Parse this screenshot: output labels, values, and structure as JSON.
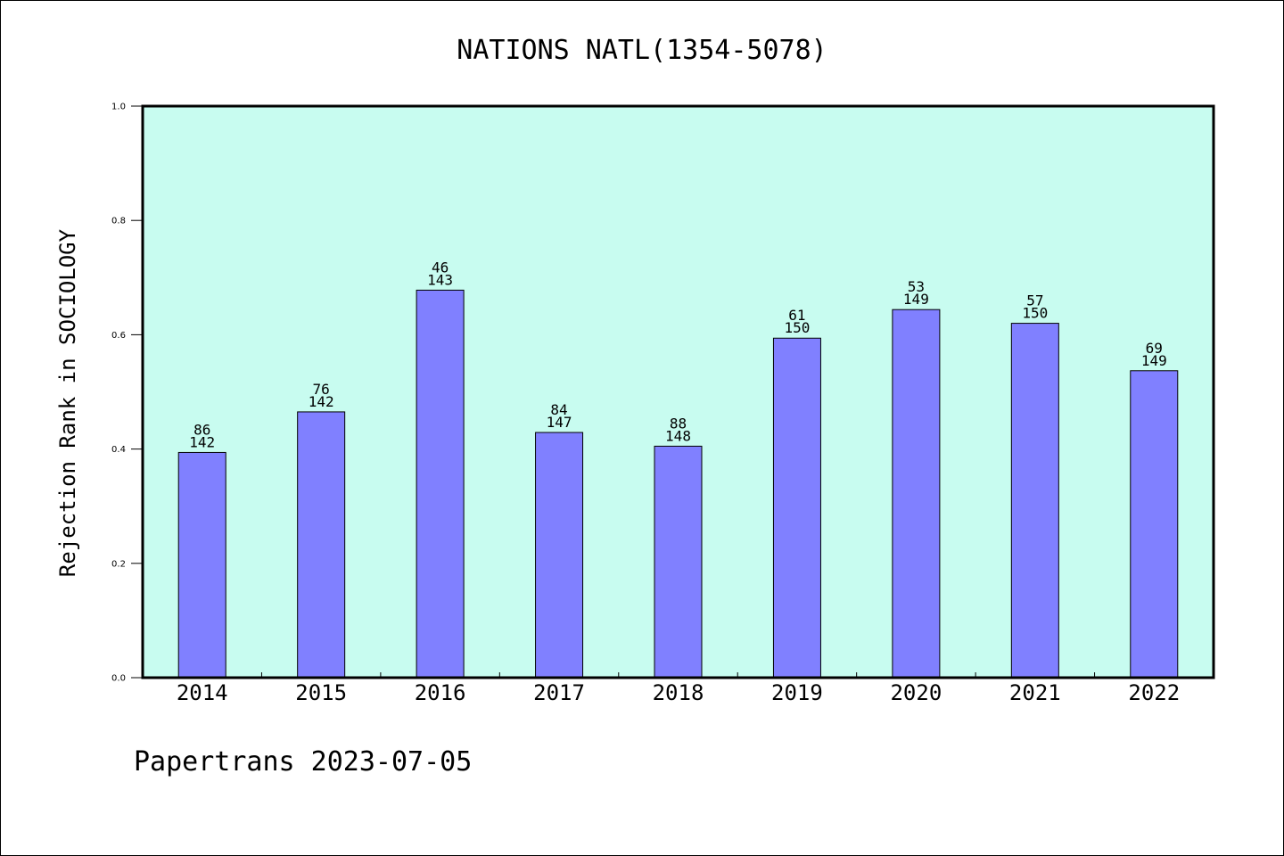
{
  "chart_data": {
    "type": "bar",
    "title": "NATIONS NATL(1354-5078)",
    "xlabel": "",
    "ylabel": "Rejection Rank in SOCIOLOGY",
    "ylim": [
      0.0,
      1.0
    ],
    "yticks": [
      "0.0",
      "0.2",
      "0.4",
      "0.6",
      "0.8",
      "1.0"
    ],
    "categories": [
      "2014",
      "2015",
      "2016",
      "2017",
      "2018",
      "2019",
      "2020",
      "2021",
      "2022"
    ],
    "values": [
      0.394,
      0.465,
      0.678,
      0.429,
      0.405,
      0.594,
      0.644,
      0.62,
      0.537
    ],
    "annotations": [
      {
        "rank": "86",
        "total": "142"
      },
      {
        "rank": "76",
        "total": "142"
      },
      {
        "rank": "46",
        "total": "143"
      },
      {
        "rank": "84",
        "total": "147"
      },
      {
        "rank": "88",
        "total": "148"
      },
      {
        "rank": "61",
        "total": "150"
      },
      {
        "rank": "53",
        "total": "149"
      },
      {
        "rank": "57",
        "total": "150"
      },
      {
        "rank": "69",
        "total": "149"
      }
    ],
    "colors": {
      "plot_background": "#c8fcf0",
      "bar_fill": "#8080ff",
      "bar_stroke": "#000000"
    },
    "grid": false,
    "legend": "none"
  },
  "footer": {
    "text": "Papertrans 2023-07-05"
  }
}
